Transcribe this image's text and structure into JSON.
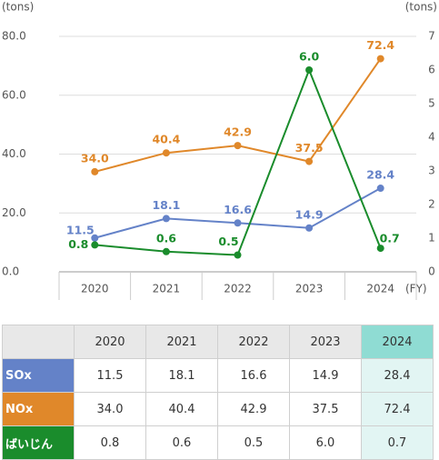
{
  "chart_data": {
    "type": "line",
    "y_label": "(tons)",
    "y2_label": "(tons)",
    "x_label": "(FY)",
    "categories": [
      "2020",
      "2021",
      "2022",
      "2023",
      "2024"
    ],
    "series": [
      {
        "name": "SOx",
        "color": "#6482c8",
        "values": [
          11.5,
          18.1,
          16.6,
          14.9,
          28.4
        ],
        "value_labels": [
          "11.5",
          "18.1",
          "16.6",
          "14.9",
          "28.4"
        ]
      },
      {
        "name": "NOx",
        "color": "#e0882a",
        "values": [
          34.0,
          40.4,
          42.9,
          37.5,
          72.4
        ],
        "value_labels": [
          "34.0",
          "40.4",
          "42.9",
          "37.5",
          "72.4"
        ]
      },
      {
        "name": "ばいじん",
        "color": "#1a8c2c",
        "axis": "y2",
        "values": [
          0.8,
          0.6,
          0.5,
          6.0,
          0.7
        ],
        "value_labels": [
          "0.8",
          "0.6",
          "0.5",
          "6.0",
          "0.7"
        ]
      }
    ],
    "ylim": [
      0,
      80
    ],
    "yticks": [
      {
        "value": 0,
        "label": "0.0"
      },
      {
        "value": 20,
        "label": "20.0"
      },
      {
        "value": 40,
        "label": "40.0"
      },
      {
        "value": 60,
        "label": "60.0"
      },
      {
        "value": 80,
        "label": "80.0"
      }
    ],
    "y2lim": [
      0,
      7
    ],
    "y2ticks": [
      0,
      1,
      2,
      3,
      4,
      5,
      6,
      7
    ],
    "grid": true
  }
}
